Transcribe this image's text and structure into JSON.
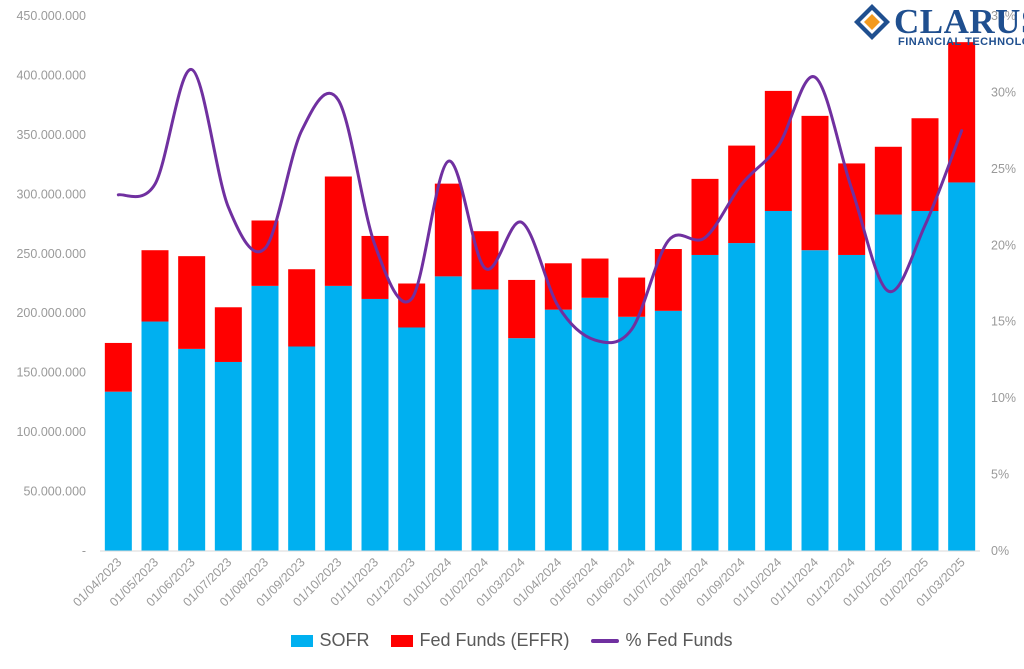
{
  "logo": {
    "name": "CLARUS",
    "subtitle": "FINANCIAL TECHNOLOGY"
  },
  "colors": {
    "sofr": "#00b0f0",
    "effr": "#ff0000",
    "pct": "#7030a0",
    "axis_text": "#9a9a9a"
  },
  "legend": {
    "sofr": "SOFR",
    "effr": "Fed Funds (EFFR)",
    "pct": "% Fed Funds"
  },
  "chart_data": {
    "type": "bar",
    "stacked": true,
    "categories": [
      "01/04/2023",
      "01/05/2023",
      "01/06/2023",
      "01/07/2023",
      "01/08/2023",
      "01/09/2023",
      "01/10/2023",
      "01/11/2023",
      "01/12/2023",
      "01/01/2024",
      "01/02/2024",
      "01/03/2024",
      "01/04/2024",
      "01/05/2024",
      "01/06/2024",
      "01/07/2024",
      "01/08/2024",
      "01/09/2024",
      "01/10/2024",
      "01/11/2024",
      "01/12/2024",
      "01/01/2025",
      "01/02/2025",
      "01/03/2025"
    ],
    "series": [
      {
        "name": "SOFR",
        "type": "bar",
        "axis": "left",
        "values": [
          134000000,
          193000000,
          170000000,
          159000000,
          223000000,
          172000000,
          223000000,
          212000000,
          188000000,
          231000000,
          220000000,
          179000000,
          203000000,
          213000000,
          197000000,
          202000000,
          249000000,
          259000000,
          286000000,
          253000000,
          249000000,
          283000000,
          286000000,
          310000000
        ]
      },
      {
        "name": "Fed Funds (EFFR)",
        "type": "bar",
        "axis": "left",
        "values": [
          41000000,
          60000000,
          78000000,
          46000000,
          55000000,
          65000000,
          92000000,
          53000000,
          37000000,
          78000000,
          49000000,
          49000000,
          39000000,
          33000000,
          33000000,
          52000000,
          64000000,
          82000000,
          101000000,
          113000000,
          77000000,
          57000000,
          78000000,
          118000000
        ]
      },
      {
        "name": "% Fed Funds",
        "type": "line",
        "axis": "right",
        "values": [
          23.3,
          24.0,
          31.5,
          22.5,
          19.8,
          27.5,
          29.5,
          20.0,
          16.5,
          25.5,
          18.5,
          21.5,
          16.0,
          13.8,
          14.5,
          20.3,
          20.5,
          24.0,
          26.5,
          31.0,
          23.7,
          17.0,
          21.3,
          27.5
        ]
      }
    ],
    "yticks_left": [
      "-",
      "50.000.000",
      "100.000.000",
      "150.000.000",
      "200.000.000",
      "250.000.000",
      "300.000.000",
      "350.000.000",
      "400.000.000",
      "450.000.000"
    ],
    "yticks_right": [
      "0%",
      "5%",
      "10%",
      "15%",
      "20%",
      "25%",
      "30%",
      "35%"
    ],
    "ylim_left": [
      0,
      450000000
    ],
    "ylim_right": [
      0,
      35
    ],
    "grid": false,
    "legend_position": "bottom"
  }
}
